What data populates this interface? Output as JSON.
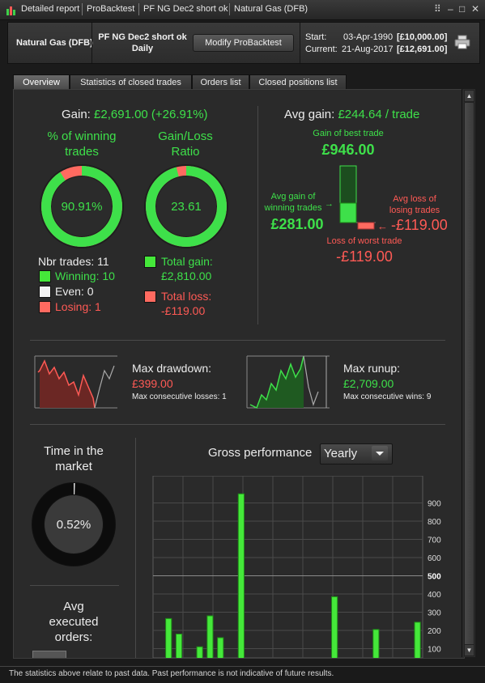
{
  "titlebar": {
    "crumbs": [
      "Detailed report",
      "ProBacktest",
      "PF NG Dec2 short ok",
      "Natural Gas (DFB)"
    ],
    "controls": [
      "⠿",
      "–",
      "□",
      "✕"
    ]
  },
  "header": {
    "instrument": "Natural Gas (DFB)",
    "strategy_name": "PF NG Dec2 short ok",
    "timeframe": "Daily",
    "modify_button": "Modify ProBacktest",
    "start_label": "Start:",
    "start_date": "03-Apr-1990",
    "start_value": "[£10,000.00]",
    "current_label": "Current:",
    "current_date": "21-Aug-2017",
    "current_value": "[£12,691.00]"
  },
  "tabs": [
    {
      "label": "Overview",
      "active": true
    },
    {
      "label": "Statistics of closed trades",
      "active": false
    },
    {
      "label": "Orders list",
      "active": false
    },
    {
      "label": "Closed positions list",
      "active": false
    }
  ],
  "gain": {
    "label": "Gain:",
    "value": "£2,691.00 (+26.91%)"
  },
  "winning_ring": {
    "title_line1": "% of winning",
    "title_line2": "trades",
    "value": "90.91%",
    "fraction": 0.9091
  },
  "ratio_ring": {
    "title_line1": "Gain/Loss",
    "title_line2": "Ratio",
    "value": "23.61",
    "fraction": 0.959
  },
  "trades": {
    "nbr_label": "Nbr trades: 11",
    "winning": "Winning: 10",
    "even": "Even: 0",
    "losing": "Losing: 1",
    "total_gain_label": "Total gain:",
    "total_gain_value": "£2,810.00",
    "total_loss_label": "Total loss:",
    "total_loss_value": "-£119.00"
  },
  "avg_gain": {
    "label": "Avg gain:",
    "value": "£244.64 / trade",
    "best_label": "Gain of best trade",
    "best_value": "£946.00",
    "avg_win_line1": "Avg gain of",
    "avg_win_line2": "winning trades",
    "avg_win_value": "£281.00",
    "avg_loss_line1": "Avg loss of",
    "avg_loss_line2": "losing trades",
    "avg_loss_value": "-£119.00",
    "worst_label": "Loss of worst trade",
    "worst_value": "-£119.00"
  },
  "drawdown": {
    "label": "Max drawdown:",
    "value": "£399.00",
    "sub": "Max consecutive losses: 1"
  },
  "runup": {
    "label": "Max runup:",
    "value": "£2,709.00",
    "sub": "Max consecutive wins: 9"
  },
  "market_time": {
    "title_line1": "Time in the",
    "title_line2": "market",
    "value": "0.52%",
    "fraction": 0.0052
  },
  "executed_orders": {
    "line1": "Avg",
    "line2": "executed",
    "line3": "orders:"
  },
  "gross_performance": {
    "label": "Gross performance",
    "period": "Yearly"
  },
  "chart_data": {
    "type": "bar",
    "title": "Gross performance",
    "values": [
      0,
      265,
      180,
      0,
      110,
      280,
      160,
      0,
      950,
      0,
      0,
      0,
      0,
      0,
      0,
      0,
      5,
      385,
      0,
      0,
      0,
      205,
      0,
      0,
      0,
      245
    ],
    "yticks": [
      100,
      200,
      300,
      400,
      500,
      600,
      700,
      800,
      900
    ],
    "ylim": [
      0,
      1000
    ],
    "colors": {
      "bar": "#45e83a",
      "bar_edge": "#1f8d18"
    }
  },
  "footer": {
    "text": "The statistics above relate to past data. Past performance is not indicative of future results."
  },
  "colors": {
    "gain": "#3ee04a",
    "loss": "#ff5a55",
    "panel": "#2a2a2a"
  }
}
